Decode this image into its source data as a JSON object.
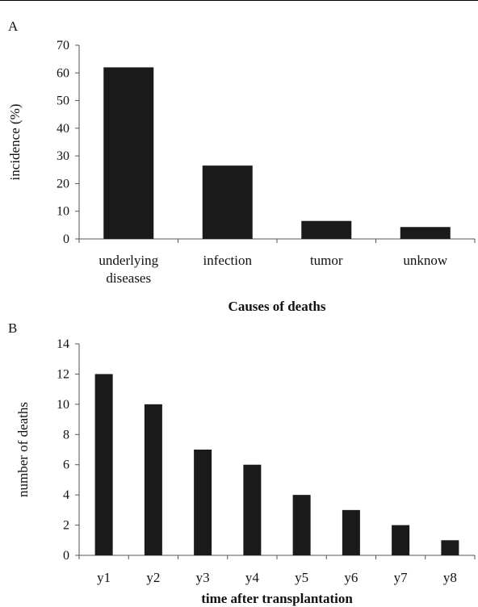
{
  "chart_data": [
    {
      "panel_label": "A",
      "type": "bar",
      "categories": [
        [
          "underlying",
          "diseases"
        ],
        [
          "infection"
        ],
        [
          "tumor"
        ],
        [
          "unknow"
        ]
      ],
      "values": [
        62,
        26.5,
        6.5,
        4.3
      ],
      "xlabel": "Causes of deaths",
      "ylabel": "incidence (%)",
      "ylim": [
        0,
        70
      ],
      "yticks": [
        0,
        10,
        20,
        30,
        40,
        50,
        60,
        70
      ],
      "bar_color": "#1a1a1a",
      "grid": false,
      "legend": "none"
    },
    {
      "panel_label": "B",
      "type": "bar",
      "categories": [
        [
          "y1"
        ],
        [
          "y2"
        ],
        [
          "y3"
        ],
        [
          "y4"
        ],
        [
          "y5"
        ],
        [
          "y6"
        ],
        [
          "y7"
        ],
        [
          "y8"
        ]
      ],
      "values": [
        12,
        10,
        7,
        6,
        4,
        3,
        2,
        1
      ],
      "xlabel": "time after transplantation",
      "ylabel": "number of deaths",
      "ylim": [
        0,
        14
      ],
      "yticks": [
        0,
        2,
        4,
        6,
        8,
        10,
        12,
        14
      ],
      "bar_color": "#1a1a1a",
      "grid": false,
      "legend": "none"
    }
  ]
}
